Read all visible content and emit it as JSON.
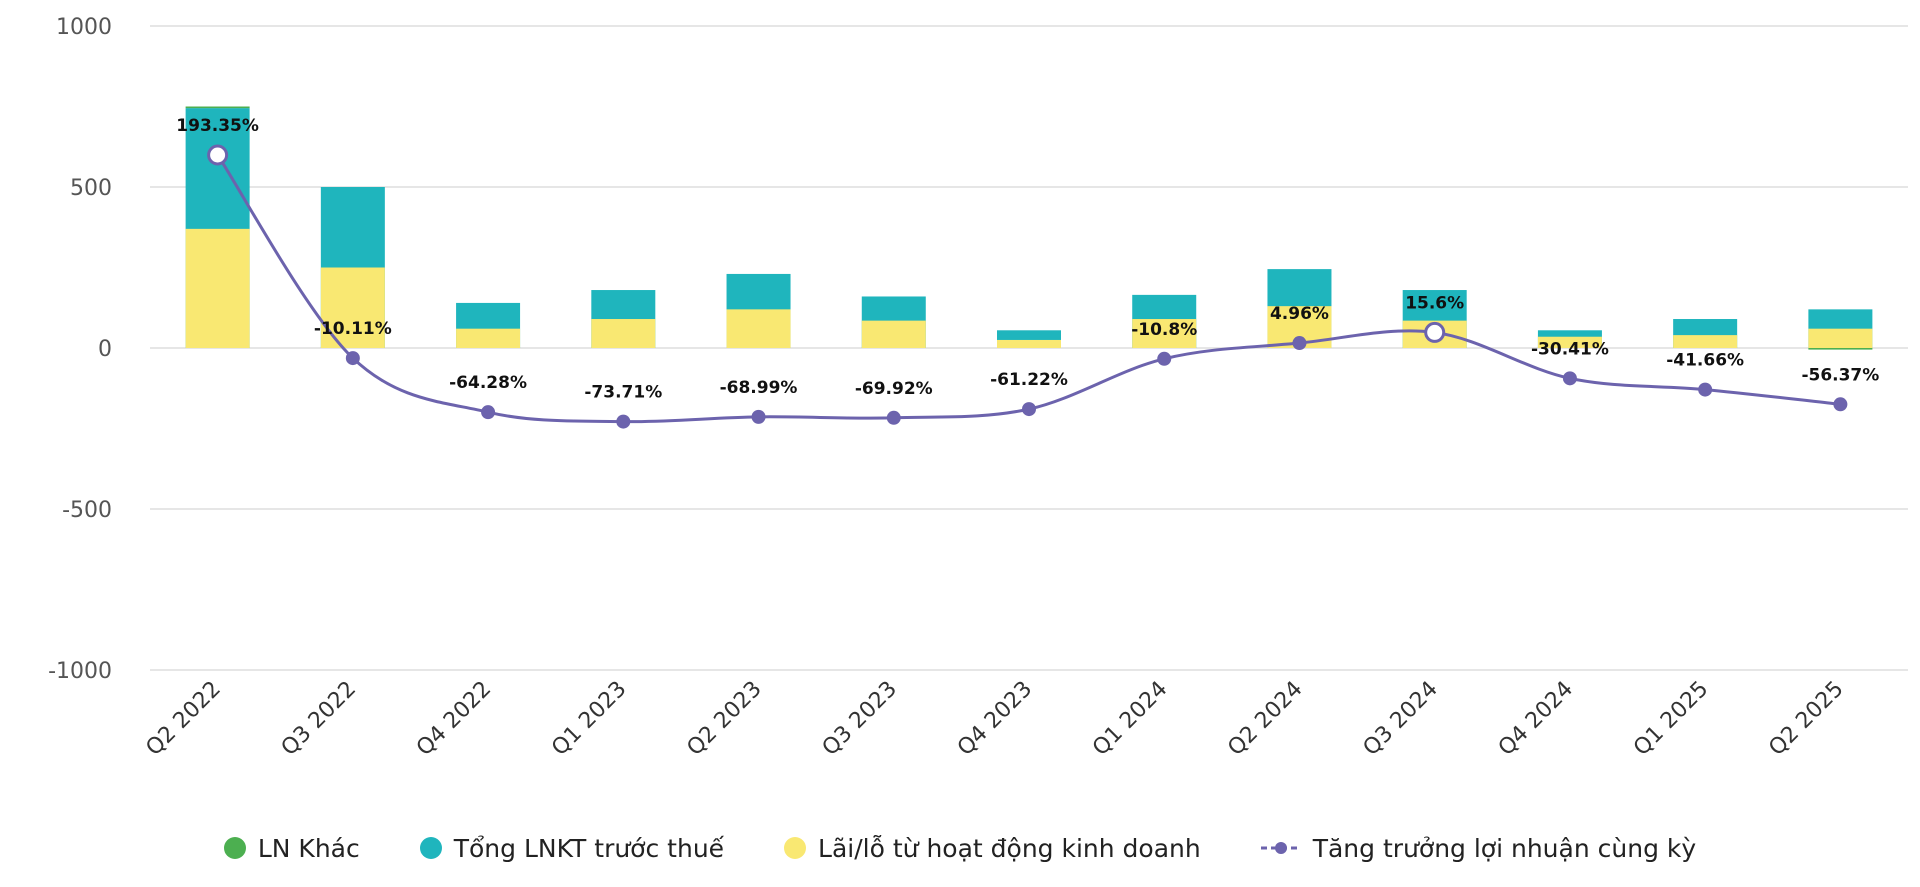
{
  "chart_data": {
    "type": "bar",
    "categories": [
      "Q2 2022",
      "Q3 2022",
      "Q4 2022",
      "Q1 2023",
      "Q2 2023",
      "Q3 2023",
      "Q4 2023",
      "Q1 2024",
      "Q2 2024",
      "Q3 2024",
      "Q4 2024",
      "Q1 2025",
      "Q2 2025"
    ],
    "y_ticks": [
      "1000",
      "500",
      "0",
      "-500",
      "-1000"
    ],
    "ylim": [
      -1000,
      1000
    ],
    "grid": true,
    "legend_position": "bottom",
    "series": [
      {
        "name": "LN Khác",
        "type": "bar",
        "color": "#4caf50",
        "values": [
          5,
          0,
          0,
          0,
          0,
          0,
          0,
          0,
          0,
          0,
          0,
          0,
          -5
        ]
      },
      {
        "name": "Tổng LNKT trước thuế",
        "type": "bar",
        "color": "#1fb5bd",
        "values": [
          745,
          500,
          140,
          180,
          230,
          160,
          55,
          165,
          245,
          180,
          55,
          90,
          120
        ]
      },
      {
        "name": "Lãi/lỗ từ hoạt động kinh doanh",
        "type": "bar",
        "color": "#f9e872",
        "values": [
          370,
          250,
          60,
          90,
          120,
          85,
          25,
          90,
          130,
          85,
          35,
          40,
          60
        ]
      },
      {
        "name": "Tăng trưởng lợi nhuận cùng kỳ",
        "type": "line",
        "color": "#6c63ad",
        "values": [
          193.35,
          -10.11,
          -64.28,
          -73.71,
          -68.99,
          -69.92,
          -61.22,
          -10.8,
          4.96,
          15.6,
          -30.41,
          -41.66,
          -56.37
        ],
        "labels": [
          "193.35%",
          "-10.11%",
          "-64.28%",
          "-73.71%",
          "-68.99%",
          "-69.92%",
          "-61.22%",
          "-10.8%",
          "4.96%",
          "15.6%",
          "-30.41%",
          "-41.66%",
          "-56.37%"
        ]
      }
    ]
  },
  "legend": {
    "ln_khac": "LN Khác",
    "tong_lnkt": "Tổng LNKT trước thuế",
    "lai_lo": "Lãi/lỗ từ hoạt động kinh doanh",
    "tang_truong": "Tăng trưởng lợi nhuận cùng kỳ"
  }
}
